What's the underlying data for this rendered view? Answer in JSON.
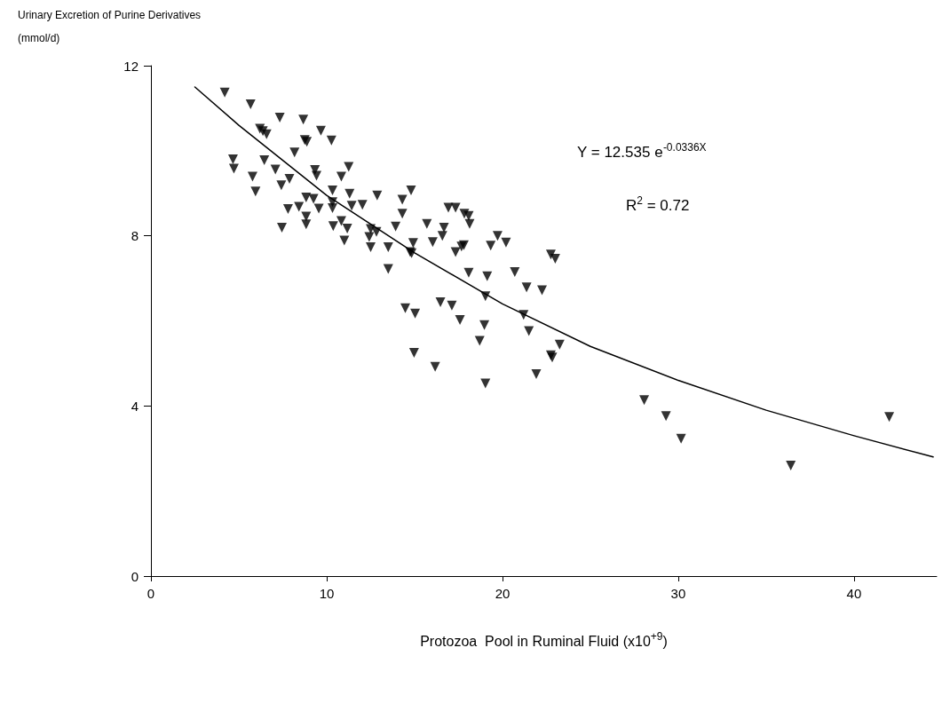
{
  "chart_data": {
    "type": "scatter",
    "ylabel": "Urinary Excretion of Purine Derivatives\n(mmol/d)",
    "xlabel": "Protozoa  Pool in Ruminal Fluid (x10$^{+9}$)",
    "annotations": [
      "Y = 12.535 e$^{-0.0336X}$",
      "R$^{2}$ = 0.72"
    ],
    "xlim": [
      0,
      44.7
    ],
    "xticks": [
      0,
      10,
      20,
      30,
      40
    ],
    "ylim": [
      0,
      12
    ],
    "yticks": [
      0,
      4,
      8,
      12
    ],
    "grid": false,
    "marker": "triangle",
    "series": [
      {
        "color": "#000000",
        "x": [
          4.2,
          5.67,
          7.33,
          8.67,
          6.2,
          6.37,
          6.58,
          9.67,
          8.75,
          8.87,
          10.27,
          8.17,
          4.67,
          4.72,
          6.45,
          7.08,
          9.33,
          9.42,
          11.25,
          5.78,
          7.88,
          10.83,
          7.42,
          5.95,
          10.33,
          11.3,
          12.87,
          8.83,
          9.25,
          10.33,
          10.33,
          7.8,
          8.42,
          9.55,
          11.42,
          12.03,
          8.83,
          8.83,
          7.45,
          10.83,
          11.17,
          10.37,
          11.0,
          12.5,
          12.42,
          12.5,
          12.83,
          13.5,
          14.8,
          14.3,
          14.3,
          13.92,
          14.75,
          14.83,
          14.92,
          13.5,
          15.7,
          16.03,
          16.67,
          16.58,
          16.92,
          17.33,
          17.83,
          18.08,
          18.13,
          17.33,
          17.67,
          17.8,
          19.33,
          19.72,
          20.2,
          18.08,
          19.13,
          20.7,
          21.37,
          22.25,
          22.75,
          23.0,
          19.03,
          21.2,
          14.47,
          15.03,
          16.47,
          17.12,
          17.58,
          18.97,
          21.5,
          18.7,
          23.25,
          22.75,
          22.83,
          14.97,
          16.17,
          21.92,
          19.03,
          28.06,
          29.3,
          30.16,
          36.4,
          42.0
        ],
        "values": [
          11.37,
          11.09,
          10.78,
          10.73,
          10.52,
          10.46,
          10.39,
          10.47,
          10.25,
          10.21,
          10.24,
          9.96,
          9.8,
          9.58,
          9.78,
          9.56,
          9.55,
          9.41,
          9.62,
          9.39,
          9.34,
          9.39,
          9.19,
          9.04,
          9.07,
          8.99,
          8.95,
          8.9,
          8.87,
          8.79,
          8.65,
          8.63,
          8.68,
          8.64,
          8.71,
          8.73,
          8.45,
          8.27,
          8.19,
          8.35,
          8.17,
          8.23,
          7.89,
          8.16,
          7.97,
          7.73,
          8.09,
          7.73,
          9.07,
          8.85,
          8.52,
          8.22,
          7.62,
          7.59,
          7.83,
          7.22,
          8.28,
          7.85,
          8.19,
          8.0,
          8.66,
          8.66,
          8.52,
          8.47,
          8.28,
          7.62,
          7.75,
          7.78,
          7.77,
          8.0,
          7.84,
          7.13,
          7.05,
          7.15,
          6.79,
          6.72,
          7.56,
          7.46,
          6.58,
          6.14,
          6.3,
          6.17,
          6.44,
          6.36,
          6.02,
          5.9,
          5.76,
          5.53,
          5.44,
          5.19,
          5.14,
          5.25,
          4.92,
          4.75,
          4.53,
          4.14,
          3.76,
          3.23,
          2.6,
          3.74
        ]
      },
      {
        "type": "line",
        "color": "#000000",
        "marker": "none",
        "line_style": "solid",
        "x": [
          2.5,
          5,
          10,
          15,
          20,
          25,
          30,
          35,
          40,
          44.5
        ],
        "values": [
          11.5,
          10.6,
          8.95,
          7.6,
          6.4,
          5.4,
          4.6,
          3.9,
          3.3,
          2.8
        ]
      }
    ]
  }
}
